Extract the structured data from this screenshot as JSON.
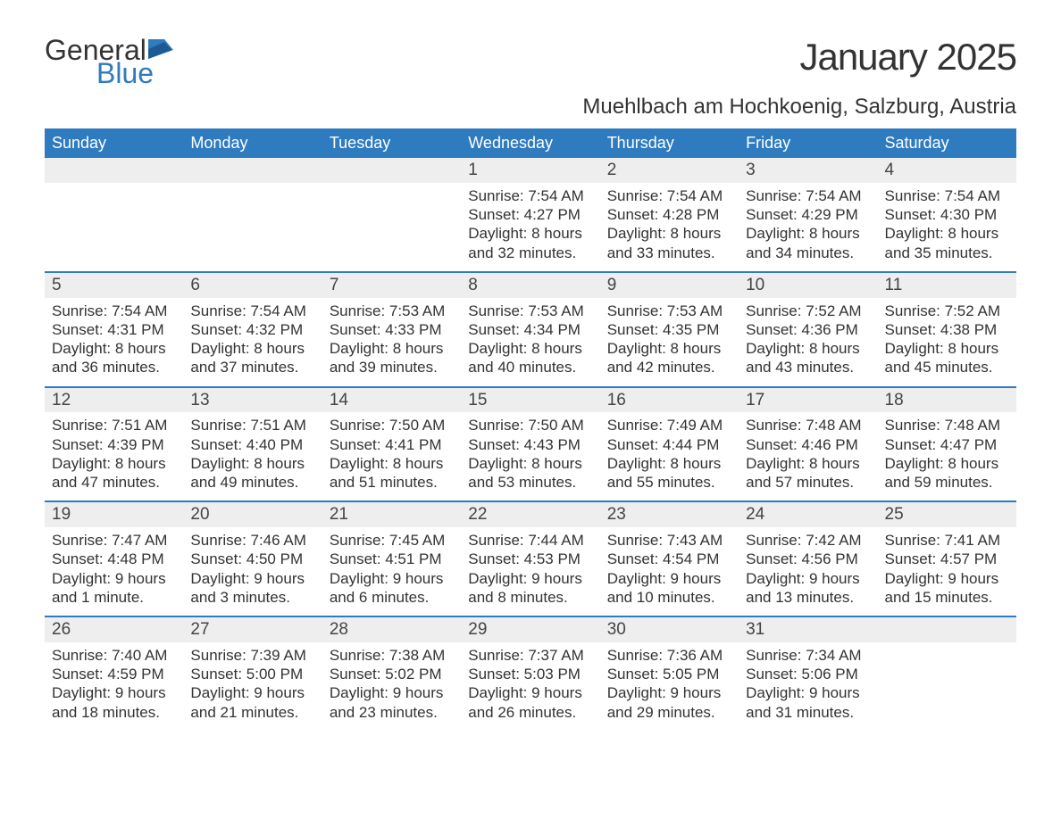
{
  "logo": {
    "text_general": "General",
    "text_blue": "Blue",
    "icon_color": "#2f7bbf"
  },
  "title": {
    "month": "January 2025",
    "location": "Muehlbach am Hochkoenig, Salzburg, Austria"
  },
  "colors": {
    "header_bg": "#2f7bbf",
    "header_text": "#ffffff",
    "day_number_bg": "#eeeeee",
    "week_border": "#2f7bbf",
    "body_text": "#333333",
    "page_bg": "#ffffff"
  },
  "fonts": {
    "body_family": "Arial",
    "month_title_size_pt": 32,
    "location_size_pt": 18,
    "header_cell_size_pt": 14,
    "day_number_size_pt": 14,
    "content_size_pt": 13
  },
  "day_headers": [
    "Sunday",
    "Monday",
    "Tuesday",
    "Wednesday",
    "Thursday",
    "Friday",
    "Saturday"
  ],
  "weeks": [
    [
      null,
      null,
      null,
      {
        "n": "1",
        "sunrise": "Sunrise: 7:54 AM",
        "sunset": "Sunset: 4:27 PM",
        "daylight": "Daylight: 8 hours and 32 minutes."
      },
      {
        "n": "2",
        "sunrise": "Sunrise: 7:54 AM",
        "sunset": "Sunset: 4:28 PM",
        "daylight": "Daylight: 8 hours and 33 minutes."
      },
      {
        "n": "3",
        "sunrise": "Sunrise: 7:54 AM",
        "sunset": "Sunset: 4:29 PM",
        "daylight": "Daylight: 8 hours and 34 minutes."
      },
      {
        "n": "4",
        "sunrise": "Sunrise: 7:54 AM",
        "sunset": "Sunset: 4:30 PM",
        "daylight": "Daylight: 8 hours and 35 minutes."
      }
    ],
    [
      {
        "n": "5",
        "sunrise": "Sunrise: 7:54 AM",
        "sunset": "Sunset: 4:31 PM",
        "daylight": "Daylight: 8 hours and 36 minutes."
      },
      {
        "n": "6",
        "sunrise": "Sunrise: 7:54 AM",
        "sunset": "Sunset: 4:32 PM",
        "daylight": "Daylight: 8 hours and 37 minutes."
      },
      {
        "n": "7",
        "sunrise": "Sunrise: 7:53 AM",
        "sunset": "Sunset: 4:33 PM",
        "daylight": "Daylight: 8 hours and 39 minutes."
      },
      {
        "n": "8",
        "sunrise": "Sunrise: 7:53 AM",
        "sunset": "Sunset: 4:34 PM",
        "daylight": "Daylight: 8 hours and 40 minutes."
      },
      {
        "n": "9",
        "sunrise": "Sunrise: 7:53 AM",
        "sunset": "Sunset: 4:35 PM",
        "daylight": "Daylight: 8 hours and 42 minutes."
      },
      {
        "n": "10",
        "sunrise": "Sunrise: 7:52 AM",
        "sunset": "Sunset: 4:36 PM",
        "daylight": "Daylight: 8 hours and 43 minutes."
      },
      {
        "n": "11",
        "sunrise": "Sunrise: 7:52 AM",
        "sunset": "Sunset: 4:38 PM",
        "daylight": "Daylight: 8 hours and 45 minutes."
      }
    ],
    [
      {
        "n": "12",
        "sunrise": "Sunrise: 7:51 AM",
        "sunset": "Sunset: 4:39 PM",
        "daylight": "Daylight: 8 hours and 47 minutes."
      },
      {
        "n": "13",
        "sunrise": "Sunrise: 7:51 AM",
        "sunset": "Sunset: 4:40 PM",
        "daylight": "Daylight: 8 hours and 49 minutes."
      },
      {
        "n": "14",
        "sunrise": "Sunrise: 7:50 AM",
        "sunset": "Sunset: 4:41 PM",
        "daylight": "Daylight: 8 hours and 51 minutes."
      },
      {
        "n": "15",
        "sunrise": "Sunrise: 7:50 AM",
        "sunset": "Sunset: 4:43 PM",
        "daylight": "Daylight: 8 hours and 53 minutes."
      },
      {
        "n": "16",
        "sunrise": "Sunrise: 7:49 AM",
        "sunset": "Sunset: 4:44 PM",
        "daylight": "Daylight: 8 hours and 55 minutes."
      },
      {
        "n": "17",
        "sunrise": "Sunrise: 7:48 AM",
        "sunset": "Sunset: 4:46 PM",
        "daylight": "Daylight: 8 hours and 57 minutes."
      },
      {
        "n": "18",
        "sunrise": "Sunrise: 7:48 AM",
        "sunset": "Sunset: 4:47 PM",
        "daylight": "Daylight: 8 hours and 59 minutes."
      }
    ],
    [
      {
        "n": "19",
        "sunrise": "Sunrise: 7:47 AM",
        "sunset": "Sunset: 4:48 PM",
        "daylight": "Daylight: 9 hours and 1 minute."
      },
      {
        "n": "20",
        "sunrise": "Sunrise: 7:46 AM",
        "sunset": "Sunset: 4:50 PM",
        "daylight": "Daylight: 9 hours and 3 minutes."
      },
      {
        "n": "21",
        "sunrise": "Sunrise: 7:45 AM",
        "sunset": "Sunset: 4:51 PM",
        "daylight": "Daylight: 9 hours and 6 minutes."
      },
      {
        "n": "22",
        "sunrise": "Sunrise: 7:44 AM",
        "sunset": "Sunset: 4:53 PM",
        "daylight": "Daylight: 9 hours and 8 minutes."
      },
      {
        "n": "23",
        "sunrise": "Sunrise: 7:43 AM",
        "sunset": "Sunset: 4:54 PM",
        "daylight": "Daylight: 9 hours and 10 minutes."
      },
      {
        "n": "24",
        "sunrise": "Sunrise: 7:42 AM",
        "sunset": "Sunset: 4:56 PM",
        "daylight": "Daylight: 9 hours and 13 minutes."
      },
      {
        "n": "25",
        "sunrise": "Sunrise: 7:41 AM",
        "sunset": "Sunset: 4:57 PM",
        "daylight": "Daylight: 9 hours and 15 minutes."
      }
    ],
    [
      {
        "n": "26",
        "sunrise": "Sunrise: 7:40 AM",
        "sunset": "Sunset: 4:59 PM",
        "daylight": "Daylight: 9 hours and 18 minutes."
      },
      {
        "n": "27",
        "sunrise": "Sunrise: 7:39 AM",
        "sunset": "Sunset: 5:00 PM",
        "daylight": "Daylight: 9 hours and 21 minutes."
      },
      {
        "n": "28",
        "sunrise": "Sunrise: 7:38 AM",
        "sunset": "Sunset: 5:02 PM",
        "daylight": "Daylight: 9 hours and 23 minutes."
      },
      {
        "n": "29",
        "sunrise": "Sunrise: 7:37 AM",
        "sunset": "Sunset: 5:03 PM",
        "daylight": "Daylight: 9 hours and 26 minutes."
      },
      {
        "n": "30",
        "sunrise": "Sunrise: 7:36 AM",
        "sunset": "Sunset: 5:05 PM",
        "daylight": "Daylight: 9 hours and 29 minutes."
      },
      {
        "n": "31",
        "sunrise": "Sunrise: 7:34 AM",
        "sunset": "Sunset: 5:06 PM",
        "daylight": "Daylight: 9 hours and 31 minutes."
      },
      null
    ]
  ]
}
